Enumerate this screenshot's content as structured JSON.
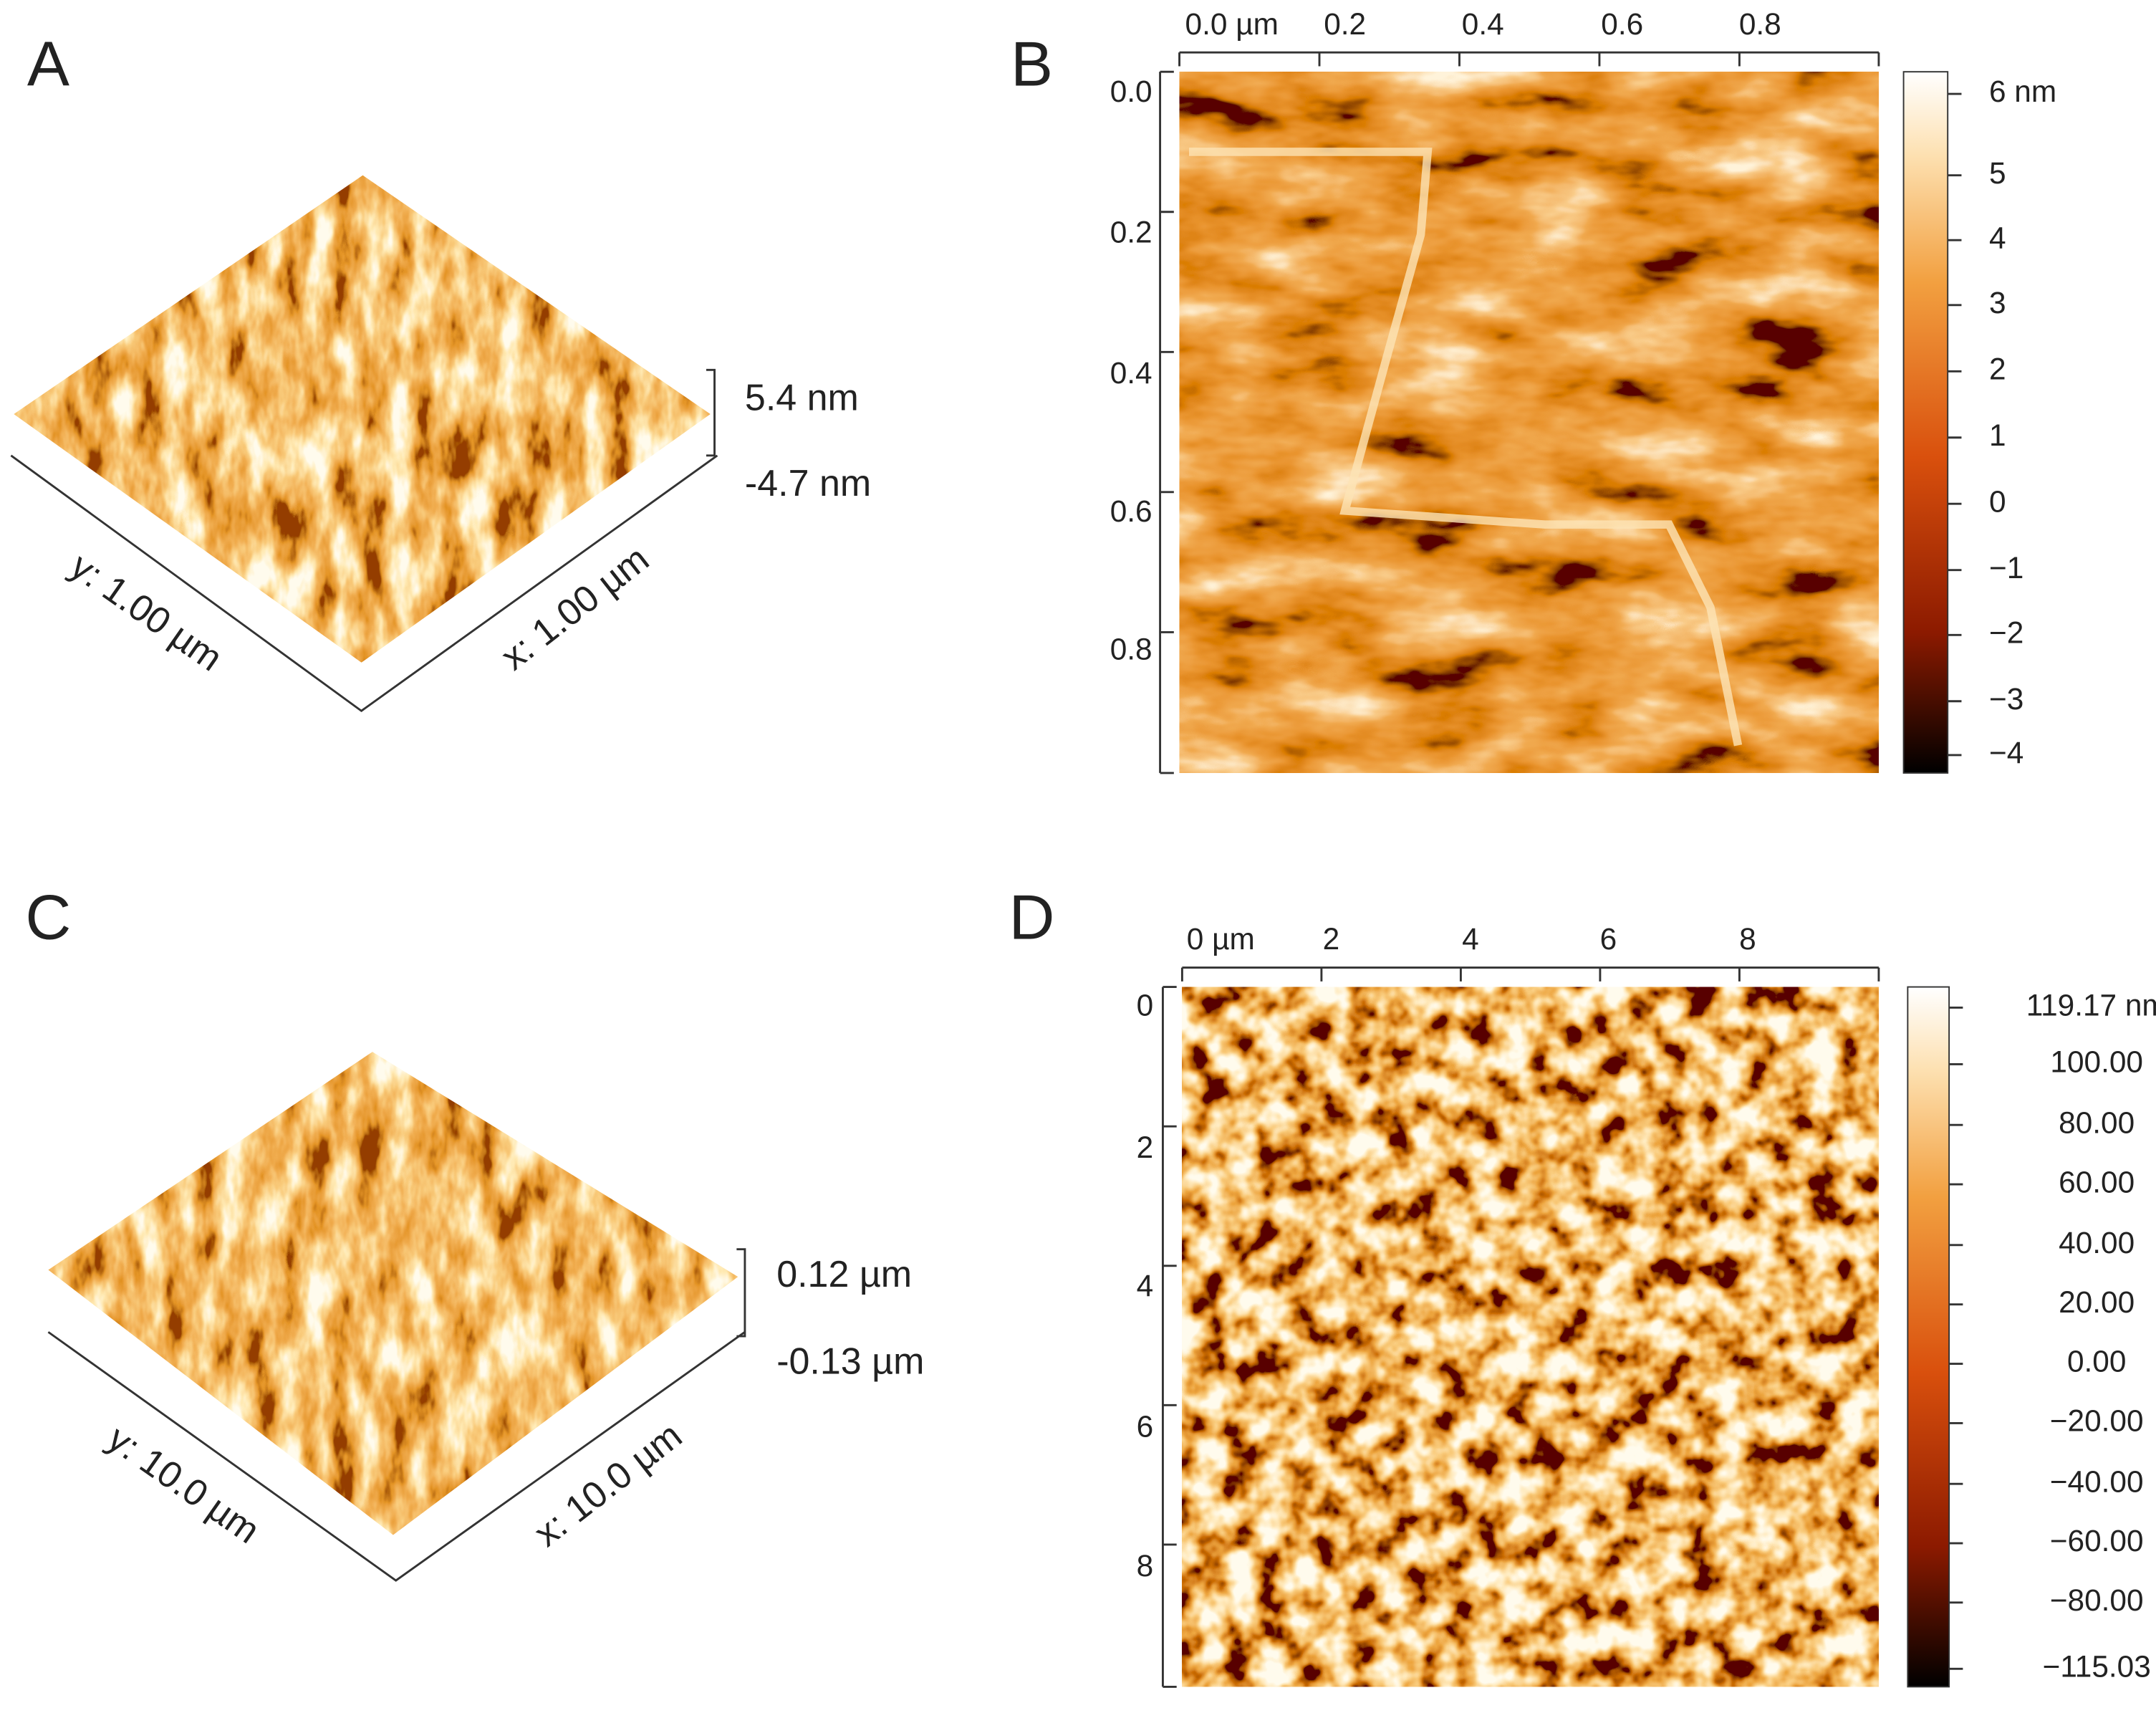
{
  "panels": [
    {
      "label": "A",
      "scale_top": "5.4 nm",
      "scale_bottom": "-4.7 nm",
      "y_axis": "y: 1.00 µm",
      "x_axis": "x: 1.00 µm"
    },
    {
      "label": "B",
      "x_ticks": [
        "0.0 µm",
        "0.2",
        "0.4",
        "0.6",
        "0.8"
      ],
      "y_ticks": [
        "0.0",
        "0.2",
        "0.4",
        "0.6",
        "0.8"
      ],
      "colorbar_ticks": [
        "6 nm",
        "5",
        "4",
        "3",
        "2",
        "1",
        "0",
        "−1",
        "−2",
        "−3",
        "−4"
      ]
    },
    {
      "label": "C",
      "scale_top": "0.12 µm",
      "scale_bottom": "-0.13 µm",
      "y_axis": "y: 10.0 µm",
      "x_axis": "x: 10.0 µm"
    },
    {
      "label": "D",
      "x_ticks": [
        "0 µm",
        "2",
        "4",
        "6",
        "8"
      ],
      "y_ticks": [
        "0",
        "2",
        "4",
        "6",
        "8"
      ],
      "colorbar_ticks": [
        "119.17 nm",
        "100.00",
        "80.00",
        "60.00",
        "40.00",
        "20.00",
        "0.00",
        "−20.00",
        "−40.00",
        "−60.00",
        "−80.00",
        "−115.03"
      ]
    }
  ]
}
